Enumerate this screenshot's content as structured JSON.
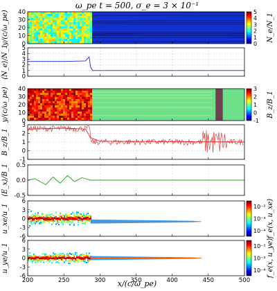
{
  "chart_data": {
    "type": "multi-panel",
    "title": "ω_pe t = 500,  σ_e = 3 × 10⁻¹",
    "xlabel": "x/(c/ω_pe)",
    "xlim": [
      200,
      500
    ],
    "xticks": [
      200,
      250,
      300,
      350,
      400,
      450,
      500
    ],
    "shock_x": 287,
    "panels": [
      {
        "id": "density-map",
        "type": "heatmap",
        "ylabel": "y/(c/ω_pe)",
        "ylim": [
          0,
          40
        ],
        "yticks": [
          0,
          10,
          20,
          30,
          40
        ],
        "colorbar": {
          "label": "N_e/N_1",
          "range": [
            0,
            5
          ],
          "ticks": [
            "0",
            "1",
            "2",
            "3",
            "4",
            "5"
          ],
          "colormap": "jet"
        },
        "upstream_level": 1,
        "downstream_range": [
          1,
          4
        ]
      },
      {
        "id": "density-profile",
        "type": "line",
        "ylabel": "⟨N_e⟩/N_1",
        "ylim": [
          0,
          5
        ],
        "yticks": [
          0,
          1,
          2,
          3,
          4,
          5
        ],
        "series": [
          {
            "color": "#1f1fdd",
            "points": [
              [
                200,
                2.6
              ],
              [
                250,
                2.6
              ],
              [
                280,
                2.7
              ],
              [
                285,
                3.4
              ],
              [
                287,
                1.6
              ],
              [
                290,
                1.0
              ],
              [
                500,
                1.0
              ]
            ]
          }
        ]
      },
      {
        "id": "bz-map",
        "type": "heatmap",
        "ylabel": "y/(c/ω_pe)",
        "ylim": [
          0,
          40
        ],
        "yticks": [
          0,
          10,
          20,
          30,
          40
        ],
        "colorbar": {
          "label": "B_z/B_1",
          "range": [
            -1,
            3
          ],
          "ticks": [
            "-1",
            "0",
            "1",
            "2",
            "3"
          ],
          "colormap": "jet"
        },
        "upstream_level": 1,
        "downstream_range": [
          2,
          3
        ],
        "precursor_x": [
          460,
          470
        ]
      },
      {
        "id": "bz-profile",
        "type": "line",
        "ylabel": "B_z/B_1",
        "ylim": [
          -1,
          3
        ],
        "yticks": [
          -1,
          0,
          1,
          2,
          3
        ],
        "series": [
          {
            "color": "#dd2222",
            "points": [
              [
                200,
                2.5
              ],
              [
                250,
                2.6
              ],
              [
                280,
                2.5
              ],
              [
                287,
                1.5
              ],
              [
                300,
                1.1
              ],
              [
                500,
                1.0
              ]
            ]
          }
        ]
      },
      {
        "id": "ex-profile",
        "type": "line",
        "ylabel": "⟨E_x⟩/B_1",
        "ylim": [
          -0.5,
          0.5
        ],
        "yticks": [
          "-0.5",
          "0.0",
          "0.5"
        ],
        "series": [
          {
            "color": "#229922",
            "points": [
              [
                200,
                0.0
              ],
              [
                210,
                0.05
              ],
              [
                225,
                -0.15
              ],
              [
                235,
                0.1
              ],
              [
                245,
                -0.1
              ],
              [
                255,
                0.15
              ],
              [
                265,
                -0.05
              ],
              [
                275,
                0.08
              ],
              [
                287,
                0.0
              ],
              [
                500,
                0.0
              ]
            ]
          }
        ]
      },
      {
        "id": "uxe-phase",
        "type": "heatmap",
        "ylabel": "u_xe/u_1",
        "ylim": [
          -6,
          6
        ],
        "yticks": [
          -6,
          -3,
          0,
          3,
          6
        ],
        "colorbar": {
          "label": "f_e(x, u_xe)",
          "ticks": [
            "10⁻²",
            "10⁻³",
            "10⁻⁴"
          ],
          "scale": "log",
          "colormap": "jet"
        },
        "downstream_spread": 5,
        "upstream_beam": -1
      },
      {
        "id": "uye-phase",
        "type": "heatmap",
        "ylabel": "u_ye/u_1",
        "ylim": [
          -6,
          6
        ],
        "yticks": [
          -6,
          -3,
          0,
          3,
          6
        ],
        "colorbar": {
          "label": "f_e(x, u_ye)",
          "ticks": [
            "10⁻²",
            "10⁻³",
            "10⁻⁴"
          ],
          "scale": "log",
          "colormap": "jet"
        },
        "downstream_spread": 4,
        "upstream_beam": 0
      }
    ]
  }
}
